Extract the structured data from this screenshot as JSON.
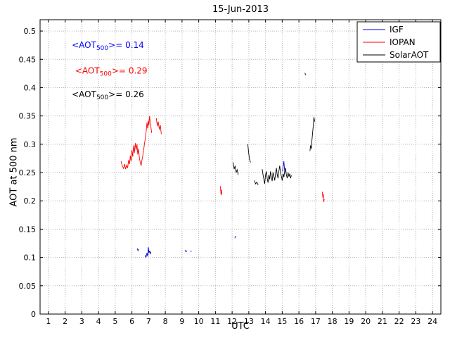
{
  "chart_data": {
    "type": "line",
    "title": "15-Jun-2013",
    "xlabel": "UTC",
    "ylabel": "AOT at 500 nm",
    "xlim": [
      0.5,
      24.5
    ],
    "ylim": [
      0,
      0.52
    ],
    "grid": true,
    "legend_position": "top-right",
    "x_ticks": [
      1,
      2,
      3,
      4,
      5,
      6,
      7,
      8,
      9,
      10,
      11,
      12,
      13,
      14,
      15,
      16,
      17,
      18,
      19,
      20,
      21,
      22,
      23,
      24
    ],
    "x_tick_labels": [
      "1",
      "2",
      "3",
      "4",
      "5",
      "6",
      "7",
      "8",
      "9",
      "10",
      "11",
      "12",
      "13",
      "14",
      "15",
      "16",
      "17",
      "18",
      "19",
      "20",
      "21",
      "22",
      "23",
      "24"
    ],
    "y_ticks": [
      0,
      0.05,
      0.1,
      0.15,
      0.2,
      0.25,
      0.3,
      0.35,
      0.4,
      0.45,
      0.5
    ],
    "y_tick_labels": [
      "0",
      "0.05",
      "0.1",
      "0.15",
      "0.2",
      "0.25",
      "0.3",
      "0.35",
      "0.4",
      "0.45",
      "0.5"
    ],
    "series": [
      {
        "name": "IGF",
        "color": "#0000cc",
        "segments": [
          [
            [
              6.32,
              0.116
            ],
            [
              6.36,
              0.112
            ],
            [
              6.4,
              0.115
            ]
          ],
          [
            [
              6.78,
              0.104
            ],
            [
              6.84,
              0.1
            ],
            [
              6.9,
              0.108
            ],
            [
              6.94,
              0.102
            ],
            [
              6.98,
              0.118
            ],
            [
              7.02,
              0.108
            ],
            [
              7.06,
              0.112
            ],
            [
              7.1,
              0.106
            ],
            [
              7.14,
              0.11
            ]
          ],
          [
            [
              9.18,
              0.113
            ],
            [
              9.24,
              0.11
            ],
            [
              9.3,
              0.112
            ]
          ],
          [
            [
              9.52,
              0.11
            ],
            [
              9.56,
              0.112
            ]
          ],
          [
            [
              12.16,
              0.134
            ],
            [
              12.22,
              0.138
            ]
          ],
          [
            [
              15.02,
              0.252
            ],
            [
              15.06,
              0.262
            ],
            [
              15.1,
              0.27
            ],
            [
              15.14,
              0.255
            ],
            [
              15.18,
              0.25
            ]
          ]
        ]
      },
      {
        "name": "IOPAN",
        "color": "#ff0000",
        "segments": [
          [
            [
              5.35,
              0.27
            ],
            [
              5.42,
              0.262
            ],
            [
              5.5,
              0.257
            ],
            [
              5.56,
              0.265
            ],
            [
              5.62,
              0.256
            ],
            [
              5.68,
              0.263
            ],
            [
              5.74,
              0.258
            ],
            [
              5.8,
              0.272
            ],
            [
              5.86,
              0.265
            ],
            [
              5.9,
              0.28
            ],
            [
              5.95,
              0.27
            ],
            [
              6.0,
              0.29
            ],
            [
              6.05,
              0.278
            ],
            [
              6.1,
              0.298
            ],
            [
              6.15,
              0.285
            ],
            [
              6.2,
              0.302
            ],
            [
              6.25,
              0.29
            ],
            [
              6.3,
              0.3
            ],
            [
              6.35,
              0.282
            ],
            [
              6.4,
              0.292
            ],
            [
              6.45,
              0.275
            ],
            [
              6.5,
              0.268
            ],
            [
              6.55,
              0.262
            ],
            [
              6.6,
              0.272
            ],
            [
              6.65,
              0.28
            ],
            [
              6.7,
              0.29
            ],
            [
              6.75,
              0.3
            ],
            [
              6.8,
              0.31
            ],
            [
              6.85,
              0.322
            ],
            [
              6.9,
              0.338
            ],
            [
              6.94,
              0.328
            ],
            [
              6.98,
              0.342
            ],
            [
              7.02,
              0.334
            ],
            [
              7.06,
              0.35
            ],
            [
              7.1,
              0.338
            ],
            [
              7.14,
              0.33
            ],
            [
              7.18,
              0.32
            ]
          ],
          [
            [
              7.46,
              0.346
            ],
            [
              7.52,
              0.332
            ],
            [
              7.58,
              0.34
            ],
            [
              7.64,
              0.326
            ],
            [
              7.7,
              0.334
            ],
            [
              7.76,
              0.318
            ]
          ],
          [
            [
              11.3,
              0.226
            ],
            [
              11.33,
              0.212
            ],
            [
              11.36,
              0.22
            ],
            [
              11.39,
              0.21
            ]
          ],
          [
            [
              17.4,
              0.216
            ],
            [
              17.43,
              0.206
            ],
            [
              17.46,
              0.212
            ],
            [
              17.49,
              0.198
            ],
            [
              17.52,
              0.203
            ]
          ]
        ]
      },
      {
        "name": "SolarAOT",
        "color": "#000000",
        "segments": [
          [
            [
              12.06,
              0.268
            ],
            [
              12.12,
              0.256
            ],
            [
              12.18,
              0.262
            ],
            [
              12.24,
              0.25
            ],
            [
              12.3,
              0.255
            ],
            [
              12.36,
              0.246
            ]
          ],
          [
            [
              12.94,
              0.3
            ],
            [
              12.98,
              0.288
            ],
            [
              13.02,
              0.278
            ],
            [
              13.06,
              0.272
            ],
            [
              13.1,
              0.268
            ]
          ],
          [
            [
              13.34,
              0.236
            ],
            [
              13.4,
              0.23
            ],
            [
              13.48,
              0.233
            ],
            [
              13.56,
              0.228
            ]
          ],
          [
            [
              13.8,
              0.256
            ],
            [
              13.85,
              0.246
            ],
            [
              13.9,
              0.238
            ],
            [
              13.95,
              0.23
            ],
            [
              14.0,
              0.245
            ],
            [
              14.05,
              0.252
            ],
            [
              14.1,
              0.24
            ],
            [
              14.15,
              0.232
            ],
            [
              14.2,
              0.246
            ],
            [
              14.25,
              0.238
            ],
            [
              14.3,
              0.252
            ],
            [
              14.35,
              0.242
            ],
            [
              14.4,
              0.235
            ],
            [
              14.45,
              0.25
            ],
            [
              14.5,
              0.244
            ],
            [
              14.55,
              0.236
            ],
            [
              14.6,
              0.248
            ],
            [
              14.65,
              0.258
            ],
            [
              14.7,
              0.246
            ],
            [
              14.75,
              0.24
            ],
            [
              14.8,
              0.252
            ],
            [
              14.85,
              0.262
            ],
            [
              14.9,
              0.25
            ],
            [
              14.95,
              0.243
            ],
            [
              15.0,
              0.236
            ],
            [
              15.05,
              0.248
            ],
            [
              15.1,
              0.242
            ],
            [
              15.15,
              0.252
            ],
            [
              15.2,
              0.258
            ],
            [
              15.25,
              0.246
            ],
            [
              15.3,
              0.24
            ],
            [
              15.35,
              0.25
            ],
            [
              15.4,
              0.243
            ],
            [
              15.45,
              0.248
            ],
            [
              15.5,
              0.24
            ],
            [
              15.55,
              0.245
            ]
          ],
          [
            [
              16.66,
              0.288
            ],
            [
              16.7,
              0.298
            ],
            [
              16.74,
              0.292
            ],
            [
              16.78,
              0.308
            ],
            [
              16.82,
              0.32
            ],
            [
              16.86,
              0.334
            ],
            [
              16.9,
              0.348
            ],
            [
              16.94,
              0.34
            ]
          ],
          [
            [
              16.36,
              0.426
            ],
            [
              16.4,
              0.422
            ]
          ]
        ]
      }
    ],
    "annotations": [
      {
        "pre": "<AOT",
        "sub": "500",
        "post": ">= 0.14",
        "color": "#0000ff",
        "x": 2.4,
        "y": 0.47
      },
      {
        "pre": "<AOT",
        "sub": "500",
        "post": ">= 0.29",
        "color": "#ff0000",
        "x": 2.6,
        "y": 0.425
      },
      {
        "pre": "<AOT",
        "sub": "500",
        "post": ">= 0.26",
        "color": "#000000",
        "x": 2.4,
        "y": 0.383
      }
    ],
    "legend": [
      "IGF",
      "IOPAN",
      "SolarAOT"
    ]
  },
  "colors": {
    "axis": "#000000",
    "grid": "#b4b4b4",
    "background": "#ffffff"
  }
}
